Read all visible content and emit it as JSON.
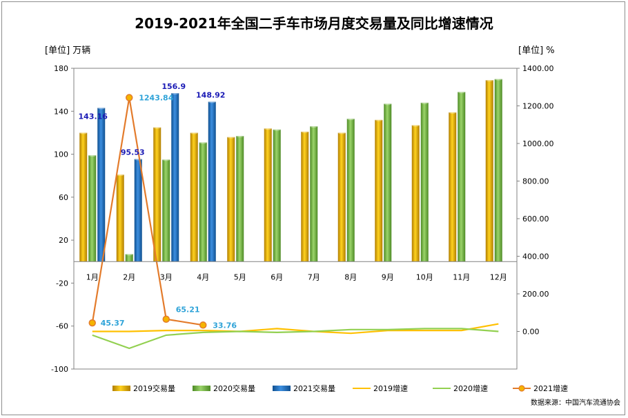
{
  "chart_data": {
    "type": "bar",
    "title": "2019-2021年全国二手车市场月度交易量及同比增速情况",
    "ylabel_left": "[单位] 万辆",
    "ylabel_right": "[单位] %",
    "categories": [
      "1月",
      "2月",
      "3月",
      "4月",
      "5月",
      "6月",
      "7月",
      "8月",
      "9月",
      "10月",
      "11月",
      "12月"
    ],
    "y_left_ticks": [
      "180",
      "140",
      "100",
      "60",
      "20",
      "-20",
      "-60",
      "-100"
    ],
    "y_right_ticks": [
      "1400.00",
      "1200.00",
      "1000.00",
      "800.00",
      "600.00",
      "400.00",
      "200.00",
      "0.00"
    ],
    "ylim_left": [
      -100,
      180
    ],
    "ylim_right": [
      -200,
      1400
    ],
    "series": [
      {
        "name": "2019交易量",
        "kind": "bar",
        "axis": "left",
        "color": "#e8a800",
        "values": [
          120,
          81,
          125,
          120,
          116,
          124,
          121,
          120,
          132,
          127,
          139,
          169
        ]
      },
      {
        "name": "2020交易量",
        "kind": "bar",
        "axis": "left",
        "color": "#7ab648",
        "values": [
          99,
          7,
          95,
          111,
          117,
          123,
          126,
          133,
          147,
          148,
          158,
          170
        ]
      },
      {
        "name": "2021交易量",
        "kind": "bar",
        "axis": "left",
        "color": "#1f6fbf",
        "values": [
          143.16,
          95.53,
          156.9,
          148.92,
          null,
          null,
          null,
          null,
          null,
          null,
          null,
          null
        ]
      },
      {
        "name": "2019增速",
        "kind": "line",
        "axis": "right",
        "color": "#ffc000",
        "values": [
          0,
          0,
          5,
          5,
          0,
          15,
          0,
          -10,
          5,
          5,
          5,
          40
        ]
      },
      {
        "name": "2020增速",
        "kind": "line",
        "axis": "right",
        "color": "#92d050",
        "values": [
          -20,
          -90,
          -20,
          -5,
          0,
          -5,
          0,
          10,
          10,
          15,
          15,
          0
        ]
      },
      {
        "name": "2021增速",
        "kind": "line",
        "axis": "right",
        "color": "#e37b2b",
        "values": [
          45.37,
          1243.84,
          65.21,
          33.76,
          null,
          null,
          null,
          null,
          null,
          null,
          null,
          null
        ]
      }
    ],
    "data_labels": {
      "bar_2021": [
        "143.16",
        "95.53",
        "156.9",
        "148.92"
      ],
      "growth_2021": [
        "45.37",
        "1243.84",
        "65.21",
        "33.76"
      ]
    },
    "legend_position": "bottom",
    "grid": false,
    "source": "数据来源：中国汽车流通协会"
  }
}
